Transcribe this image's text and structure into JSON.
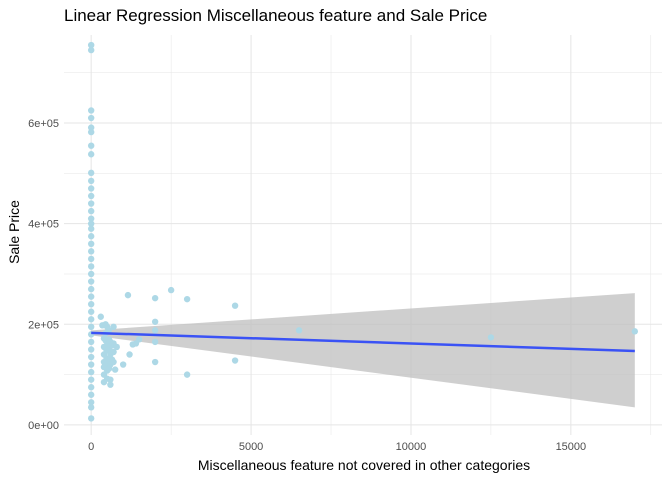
{
  "chart_data": {
    "type": "scatter",
    "title": "Linear Regression Miscellaneous feature and Sale Price",
    "xlabel": "Miscellaneous feature not covered in other categories",
    "ylabel": "Sale Price",
    "xlim": [
      -850,
      17850
    ],
    "ylim": [
      -20000,
      775000
    ],
    "x_ticks": [
      0,
      5000,
      10000,
      15000
    ],
    "x_tick_labels": [
      "0",
      "5000",
      "10000",
      "15000"
    ],
    "y_ticks": [
      0,
      200000,
      400000,
      600000
    ],
    "y_tick_labels": [
      "0e+00",
      "2e+05",
      "4e+05",
      "6e+05"
    ],
    "grid": true,
    "colors": {
      "points": "#add8e6",
      "line": "#3a52f5",
      "band": "#bfbfbf",
      "grid": "#e5e5e5"
    },
    "points": [
      [
        0,
        755000
      ],
      [
        0,
        745000
      ],
      [
        0,
        625000
      ],
      [
        0,
        610000
      ],
      [
        0,
        591000
      ],
      [
        0,
        582000
      ],
      [
        0,
        555000
      ],
      [
        0,
        538000
      ],
      [
        0,
        501000
      ],
      [
        0,
        485000
      ],
      [
        0,
        470000
      ],
      [
        0,
        455000
      ],
      [
        0,
        440000
      ],
      [
        0,
        425000
      ],
      [
        0,
        410000
      ],
      [
        0,
        400000
      ],
      [
        0,
        390000
      ],
      [
        0,
        375000
      ],
      [
        0,
        360000
      ],
      [
        0,
        345000
      ],
      [
        0,
        330000
      ],
      [
        0,
        315000
      ],
      [
        0,
        300000
      ],
      [
        0,
        285000
      ],
      [
        0,
        270000
      ],
      [
        0,
        255000
      ],
      [
        0,
        240000
      ],
      [
        0,
        225000
      ],
      [
        0,
        210000
      ],
      [
        0,
        195000
      ],
      [
        0,
        180000
      ],
      [
        0,
        165000
      ],
      [
        0,
        150000
      ],
      [
        0,
        135000
      ],
      [
        0,
        120000
      ],
      [
        0,
        105000
      ],
      [
        0,
        90000
      ],
      [
        0,
        75000
      ],
      [
        0,
        60000
      ],
      [
        0,
        45000
      ],
      [
        0,
        35000
      ],
      [
        0,
        13000
      ],
      [
        300,
        215000
      ],
      [
        350,
        198000
      ],
      [
        400,
        172000
      ],
      [
        400,
        155000
      ],
      [
        400,
        140000
      ],
      [
        400,
        125000
      ],
      [
        400,
        115000
      ],
      [
        400,
        100000
      ],
      [
        400,
        85000
      ],
      [
        450,
        200000
      ],
      [
        450,
        182000
      ],
      [
        450,
        168000
      ],
      [
        480,
        148000
      ],
      [
        480,
        132000
      ],
      [
        480,
        118000
      ],
      [
        500,
        195000
      ],
      [
        500,
        160000
      ],
      [
        500,
        108000
      ],
      [
        500,
        92000
      ],
      [
        550,
        188000
      ],
      [
        560,
        170000
      ],
      [
        560,
        150000
      ],
      [
        560,
        128000
      ],
      [
        560,
        112000
      ],
      [
        600,
        165000
      ],
      [
        600,
        140000
      ],
      [
        600,
        120000
      ],
      [
        600,
        90000
      ],
      [
        600,
        80000
      ],
      [
        650,
        158000
      ],
      [
        650,
        130000
      ],
      [
        700,
        195000
      ],
      [
        700,
        162000
      ],
      [
        700,
        145000
      ],
      [
        700,
        125000
      ],
      [
        750,
        110000
      ],
      [
        800,
        155000
      ],
      [
        1000,
        120000
      ],
      [
        1150,
        258000
      ],
      [
        1200,
        140000
      ],
      [
        1300,
        160000
      ],
      [
        1400,
        162000
      ],
      [
        1500,
        170000
      ],
      [
        2000,
        252000
      ],
      [
        2000,
        205000
      ],
      [
        2000,
        188000
      ],
      [
        2000,
        165000
      ],
      [
        2000,
        125000
      ],
      [
        2500,
        268000
      ],
      [
        3000,
        250000
      ],
      [
        3000,
        100000
      ],
      [
        4500,
        237000
      ],
      [
        4500,
        128000
      ],
      [
        6500,
        188000
      ],
      [
        12500,
        174000
      ],
      [
        17000,
        186000
      ]
    ],
    "regression": {
      "x": [
        0,
        17000
      ],
      "fit": [
        183000,
        147000
      ],
      "lower": [
        178000,
        35000
      ],
      "upper": [
        188000,
        262000
      ]
    }
  }
}
